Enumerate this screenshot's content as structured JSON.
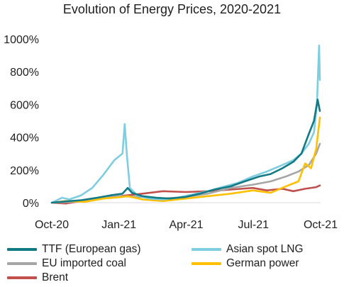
{
  "chart_data": {
    "type": "line",
    "title": "Evolution of Energy Prices, 2020-2021",
    "xlabel": "",
    "ylabel": "",
    "x_ticks": [
      "Oct-20",
      "Jan-21",
      "Apr-21",
      "Jul-21",
      "Oct-21"
    ],
    "y_ticks": [
      "0%",
      "200%",
      "400%",
      "600%",
      "800%",
      "1000%"
    ],
    "ylim": [
      0,
      1000
    ],
    "xlim": [
      "2020-10-01",
      "2021-10-01"
    ],
    "grid": false,
    "legend_position": "bottom",
    "series": [
      {
        "name": "TTF (European gas)",
        "color": "#127a85",
        "points": [
          [
            "2020-10-01",
            0
          ],
          [
            "2020-10-20",
            8
          ],
          [
            "2020-11-10",
            15
          ],
          [
            "2020-12-01",
            30
          ],
          [
            "2020-12-20",
            45
          ],
          [
            "2021-01-05",
            55
          ],
          [
            "2021-01-12",
            90
          ],
          [
            "2021-01-18",
            60
          ],
          [
            "2021-02-01",
            40
          ],
          [
            "2021-02-20",
            30
          ],
          [
            "2021-03-10",
            25
          ],
          [
            "2021-04-01",
            35
          ],
          [
            "2021-04-20",
            55
          ],
          [
            "2021-05-10",
            80
          ],
          [
            "2021-06-01",
            100
          ],
          [
            "2021-06-20",
            130
          ],
          [
            "2021-07-10",
            160
          ],
          [
            "2021-07-25",
            175
          ],
          [
            "2021-08-10",
            210
          ],
          [
            "2021-08-25",
            250
          ],
          [
            "2021-09-05",
            300
          ],
          [
            "2021-09-15",
            420
          ],
          [
            "2021-09-22",
            500
          ],
          [
            "2021-09-27",
            630
          ],
          [
            "2021-09-30",
            560
          ]
        ]
      },
      {
        "name": "Asian spot LNG",
        "color": "#7fcde0",
        "points": [
          [
            "2020-10-01",
            0
          ],
          [
            "2020-10-15",
            30
          ],
          [
            "2020-10-25",
            20
          ],
          [
            "2020-11-10",
            45
          ],
          [
            "2020-11-25",
            90
          ],
          [
            "2020-12-10",
            170
          ],
          [
            "2020-12-25",
            260
          ],
          [
            "2021-01-05",
            300
          ],
          [
            "2021-01-08",
            480
          ],
          [
            "2021-01-11",
            290
          ],
          [
            "2021-01-15",
            90
          ],
          [
            "2021-01-25",
            45
          ],
          [
            "2021-02-10",
            25
          ],
          [
            "2021-03-01",
            20
          ],
          [
            "2021-03-20",
            30
          ],
          [
            "2021-04-10",
            50
          ],
          [
            "2021-05-01",
            70
          ],
          [
            "2021-05-20",
            95
          ],
          [
            "2021-06-10",
            120
          ],
          [
            "2021-07-01",
            160
          ],
          [
            "2021-07-20",
            190
          ],
          [
            "2021-08-10",
            230
          ],
          [
            "2021-08-25",
            260
          ],
          [
            "2021-09-05",
            300
          ],
          [
            "2021-09-15",
            360
          ],
          [
            "2021-09-22",
            430
          ],
          [
            "2021-09-26",
            600
          ],
          [
            "2021-09-29",
            960
          ],
          [
            "2021-09-30",
            750
          ]
        ]
      },
      {
        "name": "EU imported coal",
        "color": "#a6a6a6",
        "points": [
          [
            "2020-10-01",
            0
          ],
          [
            "2020-11-01",
            5
          ],
          [
            "2020-12-01",
            25
          ],
          [
            "2021-01-01",
            40
          ],
          [
            "2021-02-01",
            35
          ],
          [
            "2021-03-01",
            25
          ],
          [
            "2021-04-01",
            35
          ],
          [
            "2021-05-01",
            55
          ],
          [
            "2021-06-01",
            90
          ],
          [
            "2021-07-01",
            110
          ],
          [
            "2021-07-25",
            130
          ],
          [
            "2021-08-15",
            160
          ],
          [
            "2021-09-01",
            190
          ],
          [
            "2021-09-15",
            230
          ],
          [
            "2021-09-25",
            300
          ],
          [
            "2021-09-30",
            360
          ]
        ]
      },
      {
        "name": "German power",
        "color": "#ffc000",
        "points": [
          [
            "2020-10-01",
            0
          ],
          [
            "2020-10-20",
            10
          ],
          [
            "2020-11-15",
            5
          ],
          [
            "2020-12-10",
            25
          ],
          [
            "2021-01-05",
            35
          ],
          [
            "2021-01-12",
            40
          ],
          [
            "2021-02-01",
            20
          ],
          [
            "2021-03-01",
            10
          ],
          [
            "2021-04-01",
            25
          ],
          [
            "2021-05-01",
            40
          ],
          [
            "2021-06-01",
            55
          ],
          [
            "2021-07-01",
            75
          ],
          [
            "2021-07-25",
            60
          ],
          [
            "2021-08-15",
            100
          ],
          [
            "2021-09-01",
            130
          ],
          [
            "2021-09-10",
            240
          ],
          [
            "2021-09-18",
            210
          ],
          [
            "2021-09-25",
            330
          ],
          [
            "2021-09-30",
            520
          ]
        ]
      },
      {
        "name": "Brent",
        "color": "#c0504d",
        "points": [
          [
            "2020-10-01",
            0
          ],
          [
            "2020-10-20",
            -5
          ],
          [
            "2020-11-10",
            10
          ],
          [
            "2020-12-01",
            25
          ],
          [
            "2021-01-01",
            40
          ],
          [
            "2021-02-01",
            55
          ],
          [
            "2021-03-01",
            70
          ],
          [
            "2021-04-01",
            65
          ],
          [
            "2021-05-01",
            70
          ],
          [
            "2021-06-01",
            80
          ],
          [
            "2021-07-01",
            90
          ],
          [
            "2021-07-20",
            75
          ],
          [
            "2021-08-10",
            85
          ],
          [
            "2021-08-25",
            70
          ],
          [
            "2021-09-10",
            85
          ],
          [
            "2021-09-25",
            95
          ],
          [
            "2021-09-30",
            105
          ]
        ]
      }
    ]
  }
}
